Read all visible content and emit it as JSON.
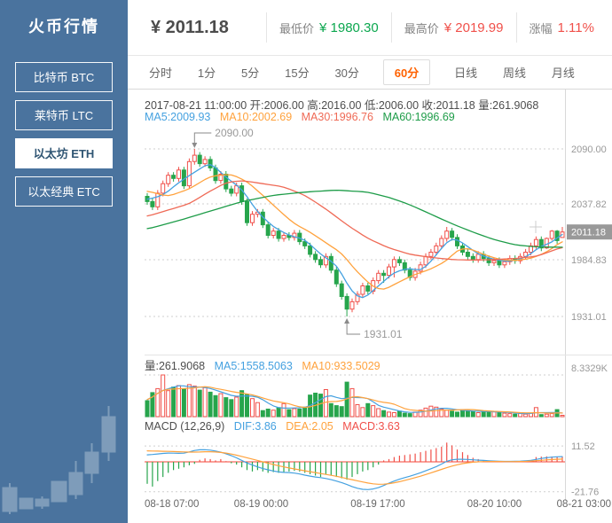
{
  "app": {
    "title": "火币行情"
  },
  "sidebar": {
    "items": [
      {
        "label": "比特币 BTC",
        "active": false
      },
      {
        "label": "莱特币 LTC",
        "active": false
      },
      {
        "label": "以太坊 ETH",
        "active": true
      },
      {
        "label": "以太经典 ETC",
        "active": false
      }
    ]
  },
  "header": {
    "price": "¥ 2011.18",
    "stats": [
      {
        "label": "最低价",
        "value": "¥ 1980.30",
        "color": "#0ca74f"
      },
      {
        "label": "最高价",
        "value": "¥ 2019.99",
        "color": "#f0504a"
      },
      {
        "label": "涨幅",
        "value": "1.11%",
        "color": "#f0504a"
      }
    ]
  },
  "tabs": {
    "items": [
      {
        "label": "分时"
      },
      {
        "label": "1分"
      },
      {
        "label": "5分"
      },
      {
        "label": "15分"
      },
      {
        "label": "30分"
      },
      {
        "label": "60分",
        "active": true
      },
      {
        "label": "日线"
      },
      {
        "label": "周线"
      },
      {
        "label": "月线"
      }
    ]
  },
  "info": {
    "line1": "2017-08-21 11:00:00  开:2006.00 高:2016.00 低:2006.00 收:2011.18 量:261.9068",
    "ma_items": [
      {
        "label": "MA5:2009.93",
        "color": "#45a1e0"
      },
      {
        "label": "MA10:2002.69",
        "color": "#ffa23d"
      },
      {
        "label": "MA30:1996.76",
        "color": "#ef6a56"
      },
      {
        "label": "MA60:1996.69",
        "color": "#1d9c48"
      }
    ]
  },
  "volume_header": {
    "vol": "量:261.9068",
    "ma5": "MA5:1558.5063",
    "ma10": "MA10:933.5029"
  },
  "macd_header": {
    "title": "MACD (12,26,9)",
    "dif": "DIF:3.86",
    "dea": "DEA:2.05",
    "macd": "MACD:3.63"
  },
  "chart_data": {
    "type": "candlestick+volume+macd",
    "timeframe": "60分",
    "x_labels": [
      "08-18 07:00",
      "08-19 00:00",
      "08-19 17:00",
      "08-20 10:00",
      "08-21 03:00"
    ],
    "price_axis": {
      "ticks": [
        2090.0,
        2037.82,
        1984.83,
        1931.01
      ],
      "current": 2011.18,
      "high_annotation": 2090.0,
      "low_annotation": 1931.01
    },
    "volume_axis": {
      "max_label": "8.3329K",
      "max_value": 8332.9
    },
    "macd_axis": {
      "ticks": [
        11.52,
        -21.76
      ]
    },
    "colors": {
      "up": "#f0504a",
      "down": "#27a54c",
      "ma5": "#45a1e0",
      "ma10": "#ffa23d",
      "ma30": "#ef6a56",
      "ma60": "#1d9c48",
      "tag_bg": "#999999"
    },
    "candles": [
      [
        2045,
        2048,
        2037,
        2040
      ],
      [
        2040,
        2043,
        2032,
        2035
      ],
      [
        2035,
        2051,
        2032,
        2048
      ],
      [
        2048,
        2060,
        2045,
        2057
      ],
      [
        2057,
        2068,
        2054,
        2065
      ],
      [
        2065,
        2068,
        2059,
        2062
      ],
      [
        2062,
        2073,
        2059,
        2070
      ],
      [
        2070,
        2073,
        2052,
        2055
      ],
      [
        2055,
        2081,
        2052,
        2078
      ],
      [
        2078,
        2090,
        2075,
        2084
      ],
      [
        2084,
        2087,
        2073,
        2076
      ],
      [
        2076,
        2083,
        2073,
        2080
      ],
      [
        2080,
        2083,
        2069,
        2072
      ],
      [
        2072,
        2075,
        2057,
        2060
      ],
      [
        2060,
        2069,
        2057,
        2066
      ],
      [
        2066,
        2069,
        2049,
        2052
      ],
      [
        2052,
        2055,
        2045,
        2048
      ],
      [
        2048,
        2058,
        2045,
        2055
      ],
      [
        2055,
        2058,
        2037,
        2040
      ],
      [
        2040,
        2043,
        2017,
        2020
      ],
      [
        2020,
        2031,
        2017,
        2028
      ],
      [
        2028,
        2033,
        2025,
        2030
      ],
      [
        2030,
        2033,
        2015,
        2018
      ],
      [
        2018,
        2021,
        2005,
        2008
      ],
      [
        2008,
        2015,
        2005,
        2012
      ],
      [
        2012,
        2015,
        2002,
        2005
      ],
      [
        2005,
        2011,
        2002,
        2008
      ],
      [
        2008,
        2011,
        2003,
        2006
      ],
      [
        2006,
        2013,
        2003,
        2010
      ],
      [
        2010,
        2013,
        1999,
        2002
      ],
      [
        2002,
        2005,
        1995,
        1998
      ],
      [
        1998,
        2001,
        1987,
        1990
      ],
      [
        1990,
        1993,
        1982,
        1985
      ],
      [
        1985,
        1988,
        1977,
        1980
      ],
      [
        1980,
        1991,
        1977,
        1988
      ],
      [
        1988,
        1991,
        1972,
        1975
      ],
      [
        1975,
        1978,
        1959,
        1962
      ],
      [
        1962,
        1965,
        1947,
        1950
      ],
      [
        1950,
        1953,
        1931.01,
        1938
      ],
      [
        1938,
        1948,
        1935,
        1945
      ],
      [
        1945,
        1955,
        1942,
        1952
      ],
      [
        1952,
        1963,
        1949,
        1960
      ],
      [
        1960,
        1963,
        1952,
        1955
      ],
      [
        1955,
        1968,
        1952,
        1965
      ],
      [
        1965,
        1975,
        1962,
        1972
      ],
      [
        1972,
        1975,
        1963,
        1970
      ],
      [
        1970,
        1981,
        1967,
        1978
      ],
      [
        1978,
        1988,
        1968,
        1985
      ],
      [
        1985,
        1988,
        1979,
        1982
      ],
      [
        1982,
        1985,
        1972,
        1975
      ],
      [
        1975,
        1978,
        1965,
        1968
      ],
      [
        1968,
        1977,
        1965,
        1974
      ],
      [
        1974,
        1983,
        1971,
        1980
      ],
      [
        1980,
        1991,
        1977,
        1988
      ],
      [
        1988,
        1995,
        1985,
        1992
      ],
      [
        1992,
        2001,
        1989,
        1998
      ],
      [
        1998,
        2008,
        1995,
        2005
      ],
      [
        2005,
        2016,
        2002,
        2012
      ],
      [
        2012,
        2015,
        2003,
        2006
      ],
      [
        2006,
        2009,
        1995,
        1998
      ],
      [
        1998,
        2001,
        1989,
        1992
      ],
      [
        1992,
        1995,
        1985,
        1988
      ],
      [
        1988,
        1991,
        1982,
        1985
      ],
      [
        1985,
        1993,
        1982,
        1990
      ],
      [
        1990,
        1993,
        1983,
        1986
      ],
      [
        1986,
        1989,
        1979,
        1982
      ],
      [
        1982,
        1987,
        1979,
        1984
      ],
      [
        1984,
        1987,
        1977,
        1980
      ],
      [
        1980,
        1986,
        1977,
        1983
      ],
      [
        1983,
        1989,
        1980,
        1986
      ],
      [
        1986,
        1989,
        1981,
        1984
      ],
      [
        1984,
        1991,
        1981,
        1988
      ],
      [
        1988,
        1995,
        1985,
        1992
      ],
      [
        1992,
        2001,
        1989,
        1998
      ],
      [
        1998,
        2007,
        1995,
        2004
      ],
      [
        2004,
        2007,
        1993,
        1996
      ],
      [
        1996,
        2006,
        1995,
        2005
      ],
      [
        2005,
        2013,
        2003,
        2012
      ],
      [
        2012,
        2013,
        2000,
        2003
      ],
      [
        2006,
        2016,
        2006,
        2011.18
      ]
    ],
    "volumes": [
      3200,
      4800,
      5600,
      8333,
      5200,
      5900,
      6200,
      5500,
      6400,
      6100,
      5300,
      5800,
      4900,
      4200,
      4600,
      3800,
      3400,
      3900,
      5200,
      4400,
      3600,
      2800,
      1200,
      1500,
      1300,
      1800,
      2600,
      1400,
      1600,
      1500,
      1900,
      4300,
      4700,
      4500,
      5400,
      2600,
      2200,
      2000,
      6900,
      5600,
      2400,
      1800,
      2600,
      2200,
      1600,
      1200,
      900,
      800,
      1100,
      700,
      600,
      900,
      1300,
      1700,
      2100,
      1900,
      1500,
      1300,
      1100,
      900,
      1400,
      1200,
      1000,
      800,
      900,
      1100,
      1000,
      800,
      700,
      600,
      500,
      600,
      500,
      700,
      1800,
      400,
      500,
      600,
      1400,
      262
    ],
    "ma_lines": {
      "MA5": {
        "points": [
          [
            0,
            2042
          ],
          [
            3,
            2046
          ],
          [
            6,
            2058
          ],
          [
            9,
            2068
          ],
          [
            12,
            2077
          ],
          [
            15,
            2063
          ],
          [
            18,
            2052
          ],
          [
            21,
            2030
          ],
          [
            24,
            2016
          ],
          [
            27,
            2008
          ],
          [
            30,
            2004
          ],
          [
            33,
            1990
          ],
          [
            36,
            1980
          ],
          [
            39,
            1954
          ],
          [
            41,
            1947
          ],
          [
            44,
            1960
          ],
          [
            47,
            1973
          ],
          [
            50,
            1977
          ],
          [
            52,
            1974
          ],
          [
            54,
            1983
          ],
          [
            56,
            1996
          ],
          [
            58,
            2006
          ],
          [
            60,
            2001
          ],
          [
            63,
            1990
          ],
          [
            66,
            1985
          ],
          [
            69,
            1983
          ],
          [
            72,
            1987
          ],
          [
            75,
            1998
          ],
          [
            77,
            2001
          ],
          [
            79,
            2009.93
          ]
        ]
      },
      "MA10": {
        "points": [
          [
            0,
            2050
          ],
          [
            4,
            2045
          ],
          [
            8,
            2052
          ],
          [
            12,
            2064
          ],
          [
            16,
            2066
          ],
          [
            19,
            2059
          ],
          [
            22,
            2046
          ],
          [
            25,
            2032
          ],
          [
            28,
            2019
          ],
          [
            31,
            2011
          ],
          [
            34,
            2001
          ],
          [
            37,
            1991
          ],
          [
            40,
            1973
          ],
          [
            43,
            1959
          ],
          [
            45,
            1956
          ],
          [
            48,
            1964
          ],
          [
            51,
            1971
          ],
          [
            54,
            1976
          ],
          [
            57,
            1984
          ],
          [
            59,
            1994
          ],
          [
            61,
            1996
          ],
          [
            64,
            1990
          ],
          [
            67,
            1985
          ],
          [
            70,
            1984
          ],
          [
            73,
            1986
          ],
          [
            76,
            1992
          ],
          [
            79,
            2002.69
          ]
        ]
      },
      "MA30": {
        "points": [
          [
            0,
            2026
          ],
          [
            4,
            2032
          ],
          [
            8,
            2038
          ],
          [
            12,
            2050
          ],
          [
            15,
            2058
          ],
          [
            18,
            2060
          ],
          [
            22,
            2057
          ],
          [
            26,
            2054
          ],
          [
            30,
            2046
          ],
          [
            34,
            2033
          ],
          [
            38,
            2018
          ],
          [
            42,
            2005
          ],
          [
            46,
            1996
          ],
          [
            50,
            1990
          ],
          [
            54,
            1987
          ],
          [
            58,
            1985
          ],
          [
            62,
            1984.5
          ],
          [
            66,
            1985
          ],
          [
            70,
            1986
          ],
          [
            74,
            1988
          ],
          [
            79,
            1996.76
          ]
        ]
      },
      "MA60": {
        "points": [
          [
            0,
            2014
          ],
          [
            6,
            2022
          ],
          [
            12,
            2031
          ],
          [
            18,
            2040
          ],
          [
            24,
            2046
          ],
          [
            30,
            2049
          ],
          [
            36,
            2051
          ],
          [
            42,
            2049
          ],
          [
            46,
            2044
          ],
          [
            50,
            2037
          ],
          [
            54,
            2028
          ],
          [
            58,
            2019
          ],
          [
            62,
            2011
          ],
          [
            66,
            2004
          ],
          [
            70,
            1999
          ],
          [
            74,
            1997
          ],
          [
            79,
            1996.69
          ]
        ]
      }
    },
    "macd": {
      "histogram": [
        -16,
        -18,
        -14,
        -11,
        -8,
        -6,
        -5,
        -4,
        -2.5,
        -1.5,
        1.5,
        2.5,
        2,
        1,
        2,
        0.5,
        -1,
        -2,
        -4,
        -6,
        -7,
        -6,
        -7,
        -8,
        -7.5,
        -8,
        -7.5,
        -7,
        -6.5,
        -7,
        -8,
        -9,
        -10,
        -11,
        -9,
        -10,
        -11,
        -12,
        -13,
        -11,
        -9,
        -7,
        -6,
        -4,
        -2,
        1,
        2,
        3.5,
        4.5,
        5,
        5.5,
        6,
        7,
        8,
        9,
        10,
        11,
        14,
        12,
        9,
        7,
        5,
        3,
        2,
        1,
        0.5,
        0.3,
        0.2,
        0.3,
        0.2,
        0.3,
        0.5,
        0.8,
        1,
        3.5,
        3.8,
        4,
        3.9,
        3.7,
        3.63
      ],
      "dif_points": [
        [
          0,
          5
        ],
        [
          4,
          6.5
        ],
        [
          7,
          6
        ],
        [
          9,
          8.5
        ],
        [
          11,
          9
        ],
        [
          13,
          8
        ],
        [
          15,
          6
        ],
        [
          17,
          3
        ],
        [
          19,
          -1
        ],
        [
          22,
          -5
        ],
        [
          25,
          -7.5
        ],
        [
          28,
          -8
        ],
        [
          31,
          -10.5
        ],
        [
          34,
          -12
        ],
        [
          37,
          -15
        ],
        [
          40,
          -19.5
        ],
        [
          42,
          -20.5
        ],
        [
          44,
          -19
        ],
        [
          46,
          -15.5
        ],
        [
          48,
          -12.5
        ],
        [
          50,
          -10.5
        ],
        [
          52,
          -8
        ],
        [
          54,
          -5
        ],
        [
          56,
          -2
        ],
        [
          57,
          1
        ],
        [
          59,
          2
        ],
        [
          61,
          1.8
        ],
        [
          63,
          1.2
        ],
        [
          65,
          0.8
        ],
        [
          67,
          0.4
        ],
        [
          69,
          0.3
        ],
        [
          71,
          0.5
        ],
        [
          73,
          1
        ],
        [
          75,
          2.5
        ],
        [
          77,
          3.5
        ],
        [
          79,
          3.86
        ]
      ],
      "dea_points": [
        [
          0,
          8
        ],
        [
          5,
          7.5
        ],
        [
          9,
          7
        ],
        [
          12,
          7.5
        ],
        [
          15,
          6.5
        ],
        [
          18,
          4
        ],
        [
          21,
          1
        ],
        [
          24,
          -2
        ],
        [
          27,
          -4.5
        ],
        [
          30,
          -6.5
        ],
        [
          33,
          -8.5
        ],
        [
          36,
          -10.5
        ],
        [
          39,
          -13
        ],
        [
          42,
          -15.5
        ],
        [
          44,
          -16.5
        ],
        [
          46,
          -16
        ],
        [
          48,
          -14.5
        ],
        [
          50,
          -12.5
        ],
        [
          52,
          -10.5
        ],
        [
          54,
          -8
        ],
        [
          56,
          -5.5
        ],
        [
          58,
          -3
        ],
        [
          60,
          -1.2
        ],
        [
          62,
          -0.2
        ],
        [
          64,
          0.2
        ],
        [
          66,
          0.3
        ],
        [
          68,
          0.2
        ],
        [
          70,
          0.2
        ],
        [
          72,
          0.3
        ],
        [
          74,
          0.8
        ],
        [
          76,
          1.4
        ],
        [
          78,
          1.9
        ],
        [
          79,
          2.05
        ]
      ]
    }
  }
}
